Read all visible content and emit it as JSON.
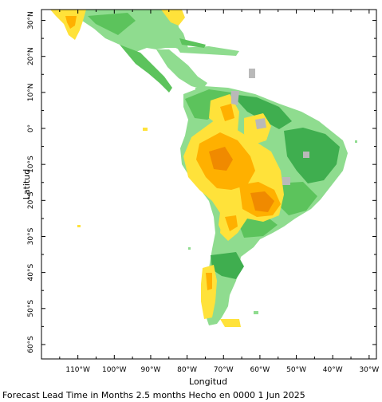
{
  "map": {
    "xlabel": "Longitud",
    "ylabel": "Latitud",
    "x_ticks": [
      {
        "value": -110,
        "label": "110°W"
      },
      {
        "value": -100,
        "label": "100°W"
      },
      {
        "value": -90,
        "label": "90°W"
      },
      {
        "value": -80,
        "label": "80°W"
      },
      {
        "value": -70,
        "label": "70°W"
      },
      {
        "value": -60,
        "label": "60°W"
      },
      {
        "value": -50,
        "label": "50°W"
      },
      {
        "value": -40,
        "label": "40°W"
      },
      {
        "value": -30,
        "label": "30°W"
      }
    ],
    "y_ticks": [
      {
        "value": 30,
        "label": "30°N"
      },
      {
        "value": 20,
        "label": "20°N"
      },
      {
        "value": 10,
        "label": "10°N"
      },
      {
        "value": 0,
        "label": "0°"
      },
      {
        "value": -10,
        "label": "10°S"
      },
      {
        "value": -20,
        "label": "20°S"
      },
      {
        "value": -30,
        "label": "30°S"
      },
      {
        "value": -40,
        "label": "40°S"
      },
      {
        "value": -50,
        "label": "50°S"
      },
      {
        "value": -60,
        "label": "60°S"
      }
    ],
    "lon_range": [
      -120,
      -28
    ],
    "lat_range": [
      -64,
      33
    ],
    "colors": {
      "light_green": "#8fdc8f",
      "green": "#5cc35c",
      "dark_green": "#3fae4f",
      "yellow": "#ffe23a",
      "orange": "#ffb000",
      "dark_orange": "#f08a00",
      "gray": "#b9b9b9",
      "frame": "#000000"
    }
  },
  "footer": "Forecast Lead Time in Months 2.5 months Hecho en 0000 1 Jun 2025"
}
